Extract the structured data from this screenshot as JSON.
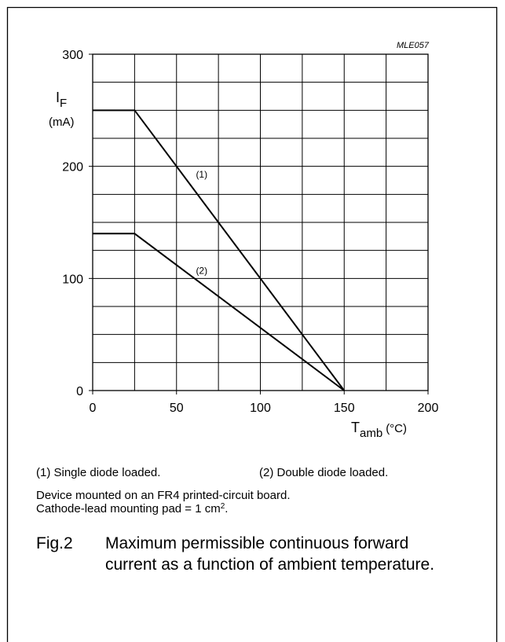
{
  "chart_data": {
    "type": "line",
    "code": "MLE057",
    "ylabel": {
      "symbol": "I",
      "subscript": "F",
      "unit": "(mA)"
    },
    "xlabel": {
      "symbol": "T",
      "subscript": "amb",
      "unit": "(°C)"
    },
    "xlim": [
      0,
      200
    ],
    "ylim": [
      0,
      300
    ],
    "x_ticks": [
      0,
      50,
      100,
      150,
      200
    ],
    "y_ticks": [
      0,
      100,
      200,
      300
    ],
    "x_minor_step": 25,
    "y_minor_step": 25,
    "grid": true,
    "series": [
      {
        "name": "(1)",
        "x": [
          0,
          25,
          150
        ],
        "y": [
          250,
          250,
          0
        ],
        "label_at": [
          65,
          190
        ]
      },
      {
        "name": "(2)",
        "x": [
          0,
          25,
          150
        ],
        "y": [
          140,
          140,
          0
        ],
        "label_at": [
          65,
          104
        ]
      }
    ]
  },
  "notes": {
    "legend_1": "(1)  Single diode loaded.",
    "legend_2": "(2)  Double diode loaded.",
    "line_1": "Device mounted on an FR4 printed-circuit board.",
    "line_2_prefix": "Cathode-lead mounting pad = 1 cm",
    "line_2_sup": "2",
    "line_2_suffix": "."
  },
  "caption": {
    "label": "Fig.2",
    "text": "Maximum permissible continuous forward current as a function of ambient temperature."
  }
}
